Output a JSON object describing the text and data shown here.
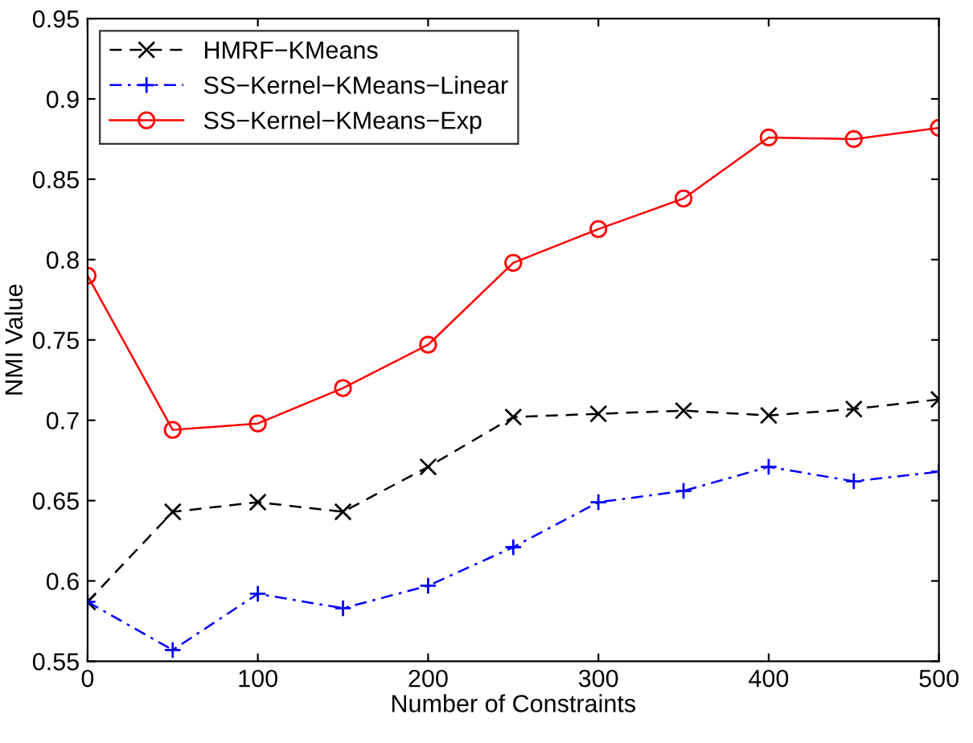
{
  "chart_data": {
    "type": "line",
    "xlabel": "Number of Constraints",
    "ylabel": "NMI Value",
    "x": [
      0,
      50,
      100,
      150,
      200,
      250,
      300,
      350,
      400,
      450,
      500
    ],
    "series": [
      {
        "name": "HMRF−KMeans",
        "color": "#000000",
        "marker": "cross",
        "line_style": "dashed",
        "values": [
          0.587,
          0.643,
          0.649,
          0.643,
          0.671,
          0.702,
          0.704,
          0.706,
          0.703,
          0.707,
          0.713
        ]
      },
      {
        "name": "SS−Kernel−KMeans−Linear",
        "color": "#0000ff",
        "marker": "plus",
        "line_style": "dashdot",
        "values": [
          0.587,
          0.557,
          0.592,
          0.583,
          0.597,
          0.621,
          0.649,
          0.656,
          0.671,
          0.662,
          0.668
        ]
      },
      {
        "name": "SS−Kernel−KMeans−Exp",
        "color": "#ff0000",
        "marker": "circle",
        "line_style": "solid",
        "values": [
          0.79,
          0.694,
          0.698,
          0.72,
          0.747,
          0.798,
          0.819,
          0.838,
          0.876,
          0.875,
          0.882
        ]
      }
    ],
    "xlim": [
      0,
      500
    ],
    "xticks": [
      0,
      100,
      200,
      300,
      400,
      500
    ],
    "ylim": [
      0.55,
      0.95
    ],
    "yticks": [
      0.55,
      0.6,
      0.65,
      0.7,
      0.75,
      0.8,
      0.85,
      0.9,
      0.95
    ],
    "grid": false,
    "legend": "top left"
  }
}
